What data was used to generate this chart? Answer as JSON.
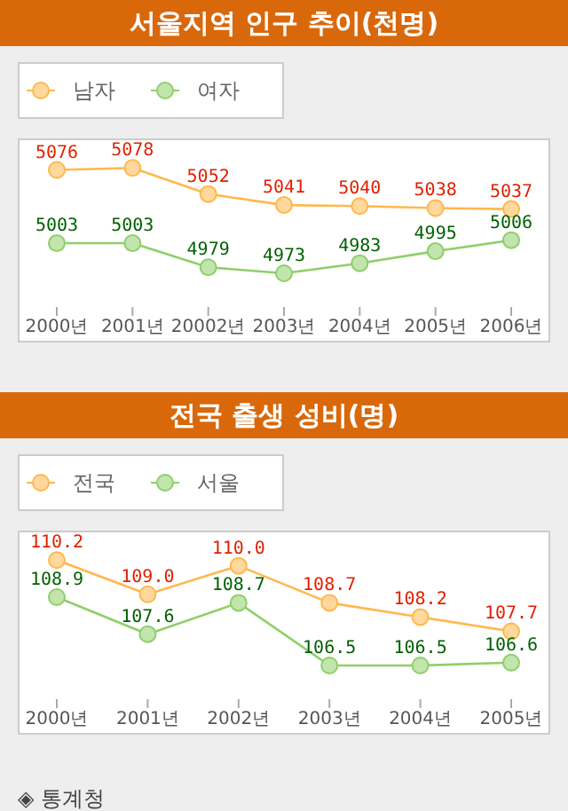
{
  "chart_data": [
    {
      "type": "line",
      "title": "서울지역 인구 추이(천명)",
      "categories": [
        "2000년",
        "2001년",
        "20002년",
        "2003년",
        "2004년",
        "2005년",
        "2006년"
      ],
      "series": [
        {
          "name": "남자",
          "color": "#ffb84d",
          "values": [
            5076,
            5078,
            5052,
            5041,
            5040,
            5038,
            5037
          ]
        },
        {
          "name": "여자",
          "color": "#8fcf6a",
          "values": [
            5003,
            5003,
            4979,
            4973,
            4983,
            4995,
            5006
          ]
        }
      ],
      "data_labels": true,
      "legend": "top left",
      "marker": "circle",
      "tick_labels": "x",
      "grid": false
    },
    {
      "type": "line",
      "title": "전국 출생 성비(명)",
      "categories": [
        "2000년",
        "2001년",
        "2002년",
        "2003년",
        "2004년",
        "2005년"
      ],
      "series": [
        {
          "name": "전국",
          "color": "#ffb84d",
          "values": [
            110.2,
            109.0,
            110.0,
            108.7,
            108.2,
            107.7
          ],
          "value_labels": [
            "110.2",
            "109.0",
            "110.0",
            "108.7",
            "108.2",
            "107.7"
          ]
        },
        {
          "name": "서울",
          "color": "#8fcf6a",
          "values": [
            108.9,
            107.6,
            108.7,
            106.5,
            106.5,
            106.6
          ],
          "value_labels": [
            "108.9",
            "107.6",
            "108.7",
            "106.5",
            "106.5",
            "106.6"
          ]
        }
      ],
      "legend": "top left",
      "marker": "circle",
      "tick_labels": "x",
      "grid": false,
      "annotations": [
        "◈ 통계청"
      ]
    }
  ]
}
